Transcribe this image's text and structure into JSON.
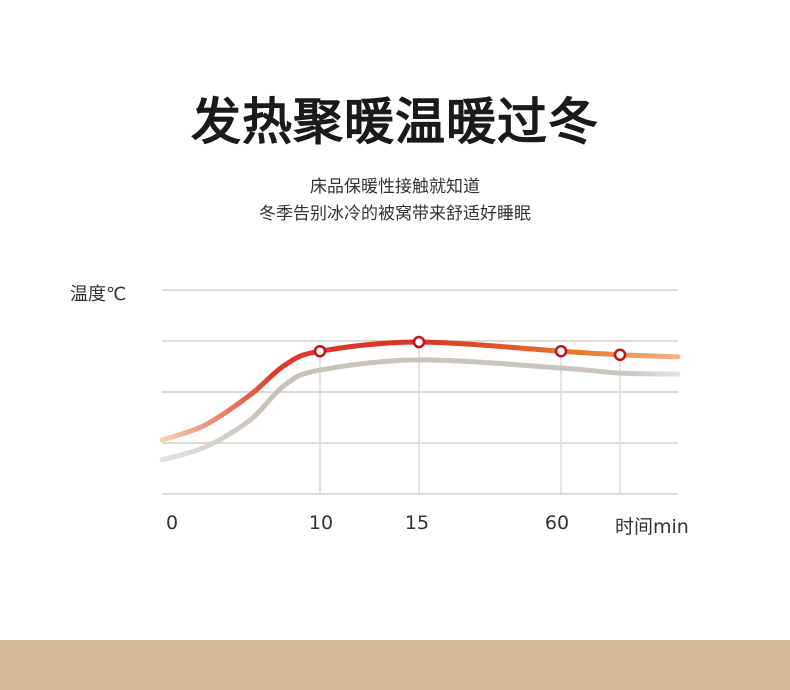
{
  "header": {
    "title": "发热聚暖温暖过冬",
    "subtitle_lines": [
      "床品保暖性接触就知道",
      "冬季告别冰冷的被窝带来舒适好睡眠"
    ]
  },
  "chart_data": {
    "type": "line",
    "ylabel": "温度℃",
    "xlabel": "时间min",
    "x_tick_labels": [
      "0",
      "10",
      "15",
      "60"
    ],
    "grid": true,
    "series": [
      {
        "color": "#d8352a",
        "gradient_start": "#f2c3a0",
        "gradient_end": "#e8752a",
        "values": [
          1.06,
          1.35,
          1.94,
          2.53,
          2.8,
          2.98,
          2.8,
          2.73,
          2.69
        ],
        "markers_at": [
          "10",
          "15",
          "60",
          ""
        ]
      },
      {
        "color": "#c9c2ba",
        "values": [
          0.67,
          0.92,
          1.45,
          2.14,
          2.43,
          2.63,
          2.47,
          2.37,
          2.35
        ]
      }
    ],
    "ylim": [
      0,
      4
    ]
  },
  "colors": {
    "band": "#d4b996",
    "grid": "#dedbd5",
    "marker": "#c2121c"
  }
}
